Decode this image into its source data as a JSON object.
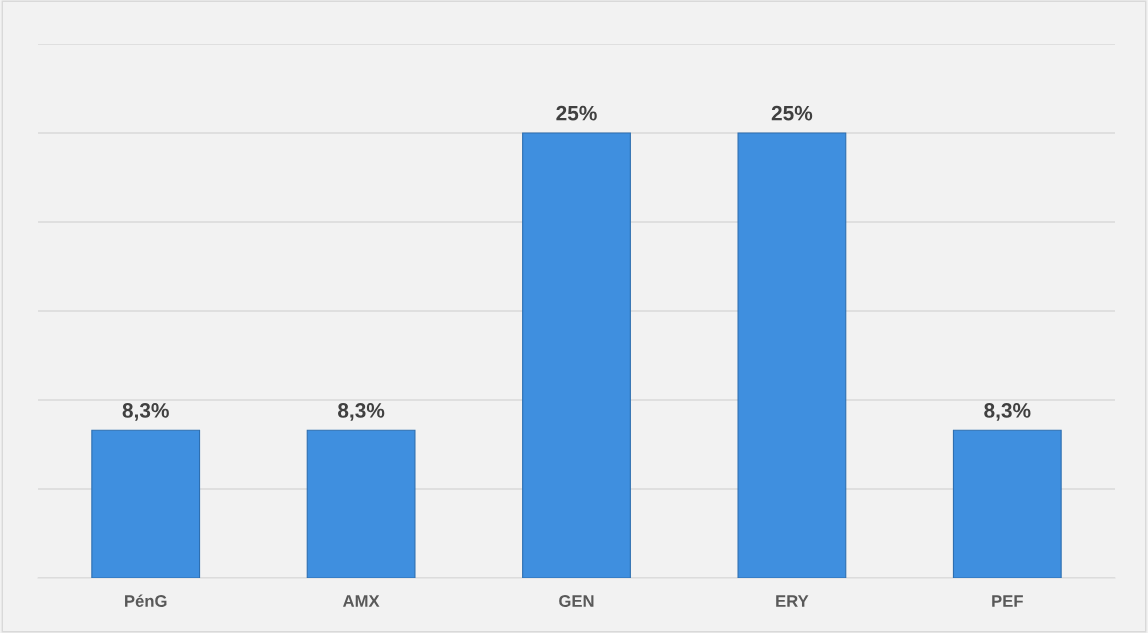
{
  "chart_data": {
    "type": "bar",
    "categories": [
      "PénG",
      "AMX",
      "GEN",
      "ERY",
      "PEF"
    ],
    "values": [
      8.3,
      8.3,
      25,
      25,
      8.3
    ],
    "value_labels": [
      "8,3%",
      "8,3%",
      "25%",
      "25%",
      "8,3%"
    ],
    "color": "#3f8fdf",
    "ylim": [
      0,
      30
    ],
    "yticks": [
      {
        "value": 0,
        "label": null
      },
      {
        "value": 5,
        "label": null
      },
      {
        "value": 10,
        "label": null
      },
      {
        "value": 15,
        "label": null
      },
      {
        "value": 20,
        "label": null
      },
      {
        "value": 25,
        "label": null
      },
      {
        "value": 30,
        "label": null
      }
    ],
    "grid": "y",
    "tick_labels": "x",
    "legend": false
  }
}
